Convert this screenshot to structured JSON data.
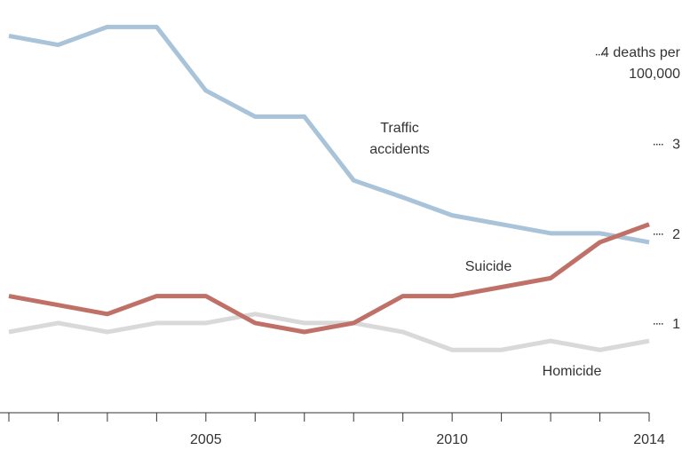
{
  "chart_data": {
    "type": "line",
    "x": [
      2001,
      2002,
      2003,
      2004,
      2005,
      2006,
      2007,
      2008,
      2009,
      2010,
      2011,
      2012,
      2013,
      2014
    ],
    "series": [
      {
        "name": "Traffic accidents",
        "color": "#a9c3d9",
        "values": [
          4.2,
          4.1,
          4.3,
          4.3,
          3.59,
          3.3,
          3.3,
          2.59,
          2.4,
          2.2,
          2.1,
          2.0,
          2.0,
          1.9
        ]
      },
      {
        "name": "Suicide",
        "color": "#bf7168",
        "values": [
          1.3,
          1.2,
          1.1,
          1.3,
          1.3,
          1.0,
          0.9,
          1.0,
          1.3,
          1.3,
          1.4,
          1.5,
          1.9,
          2.1
        ]
      },
      {
        "name": "Homicide",
        "color": "#d9d9d9",
        "values": [
          0.9,
          1.0,
          0.9,
          1.0,
          1.0,
          1.1,
          1.0,
          1.0,
          0.9,
          0.7,
          0.7,
          0.8,
          0.7,
          0.8
        ]
      }
    ],
    "xlim": [
      2000.82,
      2014
    ],
    "xticks": [
      2005,
      2010,
      2014
    ],
    "x_minor_ticks": [
      2001,
      2002,
      2003,
      2004,
      2005,
      2006,
      2007,
      2008,
      2009,
      2010,
      2011,
      2012,
      2013,
      2014
    ],
    "ylim": [
      0,
      4.6
    ],
    "yticks": [
      1,
      2,
      3,
      {
        "value": 4,
        "label": "4 deaths per 100,000"
      }
    ]
  }
}
